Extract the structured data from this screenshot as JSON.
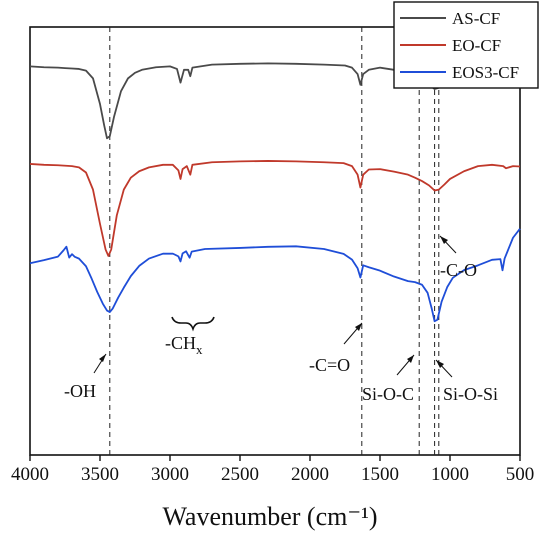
{
  "chart_data": {
    "type": "line",
    "xlabel": "Wavenumber (cm⁻¹)",
    "ylabel": "",
    "xlim": [
      4000,
      500
    ],
    "x_reversed": true,
    "xticks": [
      4000,
      3500,
      3000,
      2500,
      2000,
      1500,
      1000,
      500
    ],
    "y_ticks_shown": false,
    "grid": false,
    "legend": {
      "placement": "top-right"
    },
    "series": [
      {
        "name": "AS-CF",
        "color": "#4a4a4a",
        "points": [
          [
            4000,
            0.908
          ],
          [
            3900,
            0.906
          ],
          [
            3800,
            0.905
          ],
          [
            3750,
            0.904
          ],
          [
            3700,
            0.903
          ],
          [
            3650,
            0.902
          ],
          [
            3600,
            0.898
          ],
          [
            3550,
            0.88
          ],
          [
            3500,
            0.82
          ],
          [
            3470,
            0.77
          ],
          [
            3450,
            0.74
          ],
          [
            3430,
            0.745
          ],
          [
            3400,
            0.79
          ],
          [
            3350,
            0.85
          ],
          [
            3300,
            0.88
          ],
          [
            3250,
            0.893
          ],
          [
            3200,
            0.9
          ],
          [
            3100,
            0.906
          ],
          [
            3000,
            0.908
          ],
          [
            2950,
            0.902
          ],
          [
            2925,
            0.87
          ],
          [
            2900,
            0.9
          ],
          [
            2870,
            0.9
          ],
          [
            2855,
            0.885
          ],
          [
            2840,
            0.905
          ],
          [
            2700,
            0.912
          ],
          [
            2500,
            0.914
          ],
          [
            2300,
            0.915
          ],
          [
            2100,
            0.914
          ],
          [
            1900,
            0.912
          ],
          [
            1750,
            0.91
          ],
          [
            1700,
            0.905
          ],
          [
            1660,
            0.89
          ],
          [
            1640,
            0.865
          ],
          [
            1620,
            0.89
          ],
          [
            1580,
            0.9
          ],
          [
            1500,
            0.905
          ],
          [
            1400,
            0.9
          ],
          [
            1300,
            0.895
          ],
          [
            1250,
            0.885
          ],
          [
            1200,
            0.875
          ],
          [
            1150,
            0.865
          ],
          [
            1110,
            0.855
          ],
          [
            1080,
            0.858
          ],
          [
            1040,
            0.87
          ],
          [
            1000,
            0.88
          ],
          [
            900,
            0.9
          ],
          [
            800,
            0.905
          ],
          [
            700,
            0.903
          ],
          [
            620,
            0.9
          ],
          [
            600,
            0.897
          ],
          [
            550,
            0.905
          ],
          [
            500,
            0.915
          ]
        ]
      },
      {
        "name": "EO-CF",
        "color": "#c0392b",
        "points": [
          [
            4000,
            0.68
          ],
          [
            3900,
            0.678
          ],
          [
            3800,
            0.677
          ],
          [
            3700,
            0.675
          ],
          [
            3650,
            0.672
          ],
          [
            3600,
            0.66
          ],
          [
            3550,
            0.62
          ],
          [
            3500,
            0.54
          ],
          [
            3460,
            0.48
          ],
          [
            3440,
            0.465
          ],
          [
            3420,
            0.48
          ],
          [
            3380,
            0.56
          ],
          [
            3330,
            0.62
          ],
          [
            3280,
            0.648
          ],
          [
            3220,
            0.663
          ],
          [
            3150,
            0.672
          ],
          [
            3050,
            0.678
          ],
          [
            2980,
            0.678
          ],
          [
            2940,
            0.665
          ],
          [
            2925,
            0.645
          ],
          [
            2910,
            0.668
          ],
          [
            2880,
            0.675
          ],
          [
            2855,
            0.655
          ],
          [
            2840,
            0.678
          ],
          [
            2700,
            0.684
          ],
          [
            2500,
            0.686
          ],
          [
            2300,
            0.687
          ],
          [
            2100,
            0.686
          ],
          [
            1900,
            0.684
          ],
          [
            1760,
            0.682
          ],
          [
            1700,
            0.675
          ],
          [
            1660,
            0.655
          ],
          [
            1640,
            0.625
          ],
          [
            1620,
            0.655
          ],
          [
            1580,
            0.667
          ],
          [
            1500,
            0.668
          ],
          [
            1400,
            0.662
          ],
          [
            1300,
            0.655
          ],
          [
            1250,
            0.648
          ],
          [
            1200,
            0.64
          ],
          [
            1150,
            0.63
          ],
          [
            1110,
            0.618
          ],
          [
            1080,
            0.62
          ],
          [
            1040,
            0.632
          ],
          [
            1000,
            0.645
          ],
          [
            900,
            0.663
          ],
          [
            800,
            0.675
          ],
          [
            700,
            0.678
          ],
          [
            620,
            0.675
          ],
          [
            600,
            0.67
          ],
          [
            550,
            0.675
          ],
          [
            500,
            0.674
          ]
        ]
      },
      {
        "name": "EOS3-CF",
        "color": "#1f4ed8",
        "points": [
          [
            4000,
            0.448
          ],
          [
            3900,
            0.452
          ],
          [
            3800,
            0.46
          ],
          [
            3760,
            0.478
          ],
          [
            3740,
            0.49
          ],
          [
            3720,
            0.465
          ],
          [
            3700,
            0.47
          ],
          [
            3680,
            0.46
          ],
          [
            3650,
            0.455
          ],
          [
            3600,
            0.44
          ],
          [
            3560,
            0.415
          ],
          [
            3520,
            0.385
          ],
          [
            3480,
            0.355
          ],
          [
            3450,
            0.335
          ],
          [
            3430,
            0.33
          ],
          [
            3410,
            0.34
          ],
          [
            3370,
            0.37
          ],
          [
            3330,
            0.395
          ],
          [
            3280,
            0.42
          ],
          [
            3220,
            0.44
          ],
          [
            3150,
            0.455
          ],
          [
            3050,
            0.468
          ],
          [
            2980,
            0.472
          ],
          [
            2940,
            0.468
          ],
          [
            2925,
            0.455
          ],
          [
            2910,
            0.47
          ],
          [
            2885,
            0.472
          ],
          [
            2860,
            0.458
          ],
          [
            2845,
            0.476
          ],
          [
            2750,
            0.485
          ],
          [
            2500,
            0.487
          ],
          [
            2300,
            0.486
          ],
          [
            2100,
            0.484
          ],
          [
            1900,
            0.478
          ],
          [
            1760,
            0.47
          ],
          [
            1700,
            0.46
          ],
          [
            1660,
            0.44
          ],
          [
            1640,
            0.415
          ],
          [
            1620,
            0.44
          ],
          [
            1580,
            0.435
          ],
          [
            1500,
            0.43
          ],
          [
            1400,
            0.42
          ],
          [
            1300,
            0.41
          ],
          [
            1250,
            0.405
          ],
          [
            1200,
            0.395
          ],
          [
            1160,
            0.375
          ],
          [
            1130,
            0.34
          ],
          [
            1110,
            0.315
          ],
          [
            1090,
            0.32
          ],
          [
            1060,
            0.36
          ],
          [
            1020,
            0.39
          ],
          [
            980,
            0.41
          ],
          [
            900,
            0.43
          ],
          [
            800,
            0.445
          ],
          [
            700,
            0.46
          ],
          [
            640,
            0.46
          ],
          [
            625,
            0.43
          ],
          [
            610,
            0.455
          ],
          [
            550,
            0.505
          ],
          [
            500,
            0.53
          ]
        ]
      }
    ],
    "reference_lines": [
      3430,
      1630,
      1220,
      1110,
      1080
    ],
    "annotations": [
      "-OH",
      "-CH",
      "x",
      "-C=O",
      "Si-O-C",
      "Si-O-Si",
      "-C-O"
    ]
  }
}
